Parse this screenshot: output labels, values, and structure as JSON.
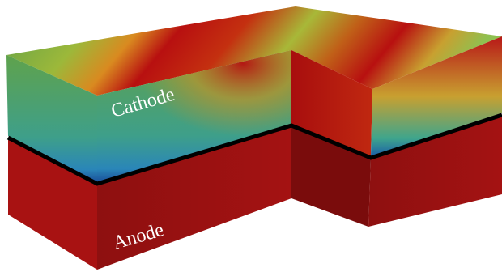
{
  "labels": {
    "cathode": "Cathode",
    "anode": "Anode"
  }
}
